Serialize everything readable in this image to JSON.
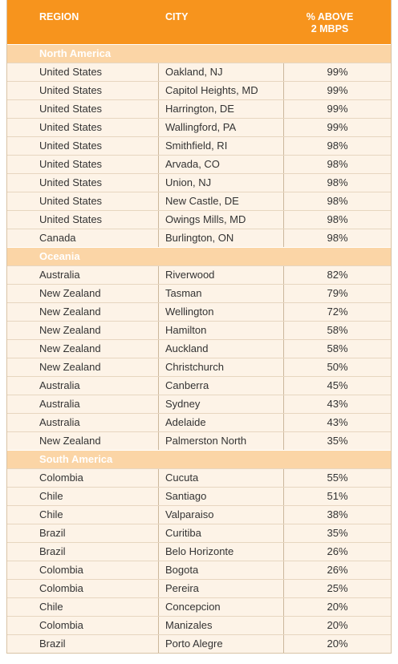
{
  "headers": {
    "region": "REGION",
    "city": "CITY",
    "pct_line1": "% ABOVE",
    "pct_line2": "2 MBPS"
  },
  "sections": [
    {
      "name": "North America",
      "rows": [
        [
          "United States",
          "Oakland, NJ",
          "99%"
        ],
        [
          "United States",
          "Capitol Heights, MD",
          "99%"
        ],
        [
          "United States",
          "Harrington, DE",
          "99%"
        ],
        [
          "United States",
          "Wallingford, PA",
          "99%"
        ],
        [
          "United States",
          "Smithfield, RI",
          "98%"
        ],
        [
          "United States",
          "Arvada, CO",
          "98%"
        ],
        [
          "United States",
          "Union, NJ",
          "98%"
        ],
        [
          "United States",
          "New Castle, DE",
          "98%"
        ],
        [
          "United States",
          "Owings Mills, MD",
          "98%"
        ],
        [
          "Canada",
          "Burlington, ON",
          "98%"
        ]
      ]
    },
    {
      "name": "Oceania",
      "rows": [
        [
          "Australia",
          "Riverwood",
          "82%"
        ],
        [
          "New Zealand",
          "Tasman",
          "79%"
        ],
        [
          "New Zealand",
          "Wellington",
          "72%"
        ],
        [
          "New Zealand",
          "Hamilton",
          "58%"
        ],
        [
          "New Zealand",
          "Auckland",
          "58%"
        ],
        [
          "New Zealand",
          "Christchurch",
          "50%"
        ],
        [
          "Australia",
          "Canberra",
          "45%"
        ],
        [
          "Australia",
          "Sydney",
          "43%"
        ],
        [
          "Australia",
          "Adelaide",
          "43%"
        ],
        [
          "New Zealand",
          "Palmerston North",
          "35%"
        ]
      ]
    },
    {
      "name": "South America",
      "rows": [
        [
          "Colombia",
          "Cucuta",
          "55%"
        ],
        [
          "Chile",
          "Santiago",
          "51%"
        ],
        [
          "Chile",
          "Valparaiso",
          "38%"
        ],
        [
          "Brazil",
          "Curitiba",
          "35%"
        ],
        [
          "Brazil",
          "Belo Horizonte",
          "26%"
        ],
        [
          "Colombia",
          "Bogota",
          "26%"
        ],
        [
          "Colombia",
          "Pereira",
          "25%"
        ],
        [
          "Chile",
          "Concepcion",
          "20%"
        ],
        [
          "Colombia",
          "Manizales",
          "20%"
        ],
        [
          "Brazil",
          "Porto Alegre",
          "20%"
        ]
      ]
    }
  ]
}
